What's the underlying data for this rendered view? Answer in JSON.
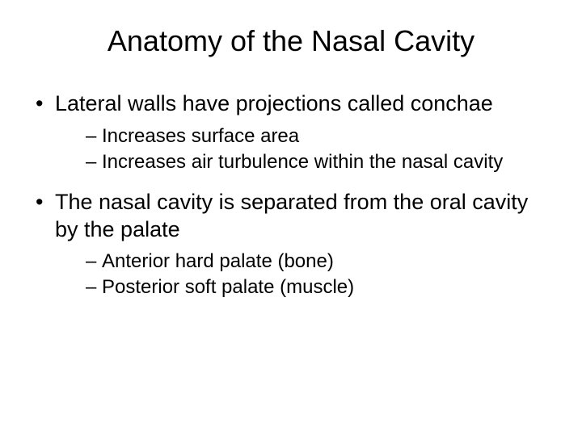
{
  "title": "Anatomy of the Nasal Cavity",
  "bullets": [
    {
      "text": "Lateral walls have projections called conchae",
      "sub": [
        {
          "text": "Increases surface area"
        },
        {
          "text": "Increases air turbulence within the nasal cavity"
        }
      ]
    },
    {
      "text": "The nasal cavity is separated from the oral cavity by the palate",
      "sub": [
        {
          "text": "Anterior hard palate (bone)"
        },
        {
          "text": "Posterior soft palate (muscle)"
        }
      ]
    }
  ],
  "styling": {
    "background_color": "#ffffff",
    "text_color": "#000000",
    "font_family": "Arial",
    "title_fontsize": 36,
    "level1_fontsize": 27,
    "level2_fontsize": 24,
    "slide_width": 720,
    "slide_height": 540
  }
}
